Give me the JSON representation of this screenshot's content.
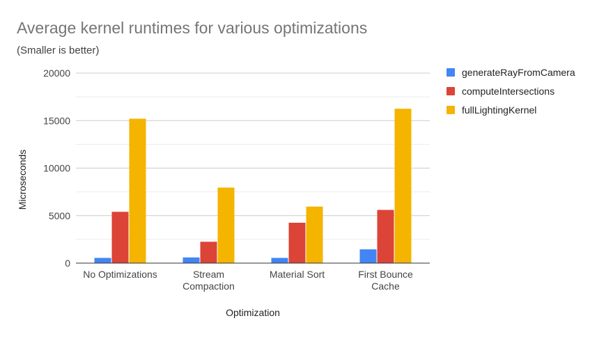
{
  "chart_data": {
    "type": "bar",
    "title": "Average kernel runtimes for various optimizations",
    "subtitle": "(Smaller is better)",
    "xlabel": "Optimization",
    "ylabel": "Microseconds",
    "ylim": [
      0,
      20000
    ],
    "yticks": [
      0,
      5000,
      10000,
      15000,
      20000
    ],
    "grid": true,
    "legend_position": "right",
    "categories": [
      [
        "No Optimizations"
      ],
      [
        "Stream",
        "Compaction"
      ],
      [
        "Material Sort"
      ],
      [
        "First Bounce",
        "Cache"
      ]
    ],
    "series": [
      {
        "name": "generateRayFromCamera",
        "color": "#4285f4",
        "values": [
          550,
          600,
          550,
          1450
        ]
      },
      {
        "name": "computeIntersections",
        "color": "#db4437",
        "values": [
          5400,
          2250,
          4250,
          5600
        ]
      },
      {
        "name": "fullLightingKernel",
        "color": "#f4b400",
        "values": [
          15200,
          7950,
          5950,
          16250
        ]
      }
    ]
  }
}
